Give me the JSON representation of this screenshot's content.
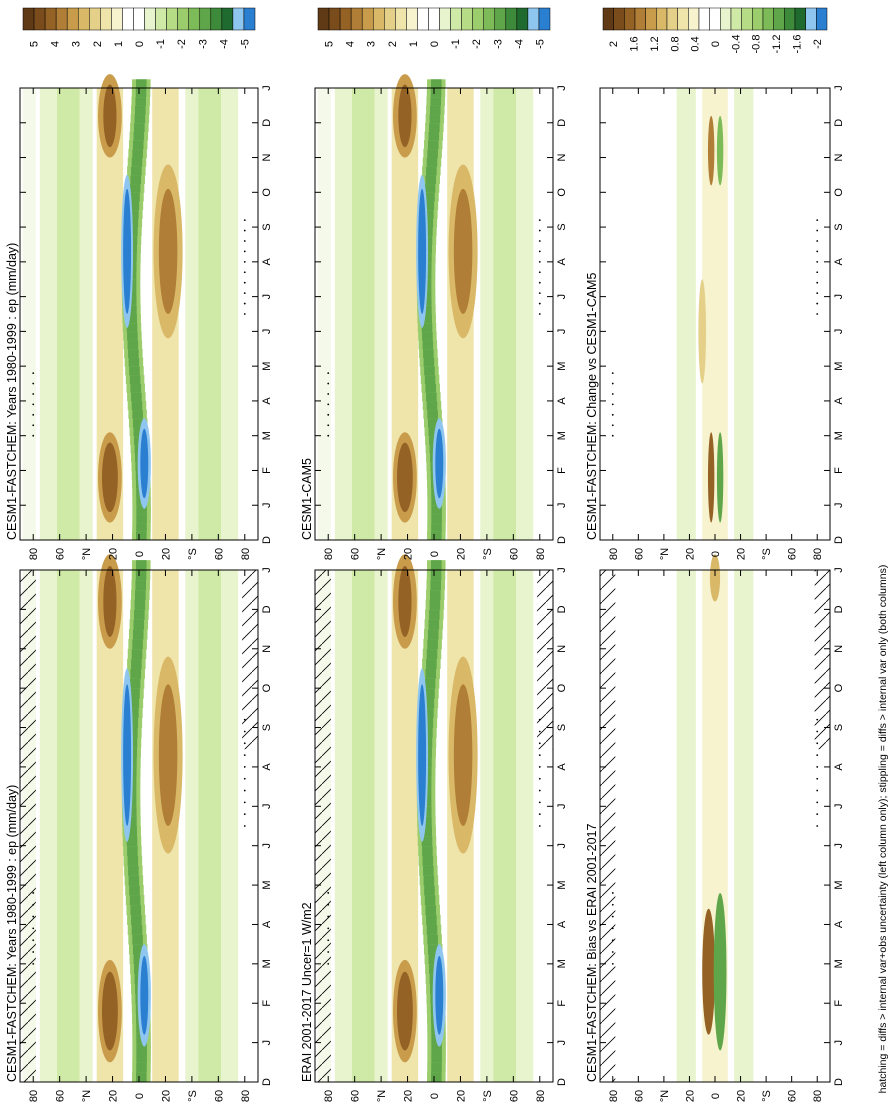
{
  "figure": {
    "footnote": "hatching = diffs > internal var+obs uncertainty (left column only); stippling = diffs > internal var only (both columns)",
    "colors": {
      "field": [
        "#2a7fd1",
        "#8fc6ef",
        "#1f6a2f",
        "#3e8a3b",
        "#5fa54a",
        "#7dbb58",
        "#9ccd6d",
        "#b7dc86",
        "#cfe9a6",
        "#e7f4cd",
        "#ffffff",
        "#ffffff",
        "#f7f3cf",
        "#efe4a9",
        "#e5d08a",
        "#d9b968",
        "#c99c4c",
        "#b07e36",
        "#956226",
        "#7a4c1c",
        "#5f3a15"
      ],
      "diff": [
        "#2a7fd1",
        "#8fc6ef",
        "#1f6a2f",
        "#3e8a3b",
        "#5fa54a",
        "#7dbb58",
        "#9ccd6d",
        "#b7dc86",
        "#cfe9a6",
        "#e7f4cd",
        "#ffffff",
        "#ffffff",
        "#f7f3cf",
        "#efe4a9",
        "#e5d08a",
        "#d9b968",
        "#c99c4c",
        "#b07e36",
        "#956226",
        "#7a4c1c",
        "#5f3a15"
      ]
    }
  },
  "panels": [
    {
      "id": "left-top",
      "title": "CESM1-FASTCHEM: Years 1980-1999 : ep (mm/day)",
      "month_ticks": [
        "D",
        "J",
        "F",
        "M",
        "A",
        "M",
        "J",
        "J",
        "A",
        "S",
        "O",
        "N",
        "D",
        "J"
      ],
      "lat_ticks": [
        "80",
        "60",
        "°N",
        "20",
        "0",
        "20",
        "°S",
        "60",
        "80"
      ],
      "colorbar_labels": [
        "5",
        "4",
        "3",
        "2",
        "1",
        "0",
        "-1",
        "-2",
        "-3",
        "-4",
        "-5"
      ],
      "palette": "field",
      "hatch": true
    },
    {
      "id": "right-top",
      "title": "CESM1-FASTCHEM: Years 1980-1999 : ep (mm/day)",
      "month_ticks": [
        "D",
        "J",
        "F",
        "M",
        "A",
        "M",
        "J",
        "J",
        "A",
        "S",
        "O",
        "N",
        "D",
        "J"
      ],
      "lat_ticks": [
        "80",
        "60",
        "°N",
        "20",
        "0",
        "20",
        "°S",
        "60",
        "80"
      ],
      "colorbar_labels": [
        "5",
        "4",
        "3",
        "2",
        "1",
        "0",
        "-1",
        "-2",
        "-3",
        "-4",
        "-5"
      ],
      "palette": "field",
      "hatch": false
    },
    {
      "id": "left-mid",
      "title": "ERAI 2001-2017 Uncer=1 W/m2",
      "month_ticks": [
        "D",
        "J",
        "F",
        "M",
        "A",
        "M",
        "J",
        "J",
        "A",
        "S",
        "O",
        "N",
        "D",
        "J"
      ],
      "lat_ticks": [
        "80",
        "60",
        "°N",
        "20",
        "0",
        "20",
        "°S",
        "60",
        "80"
      ],
      "colorbar_labels": [
        "5",
        "4",
        "3",
        "2",
        "1",
        "0",
        "-1",
        "-2",
        "-3",
        "-4",
        "-5"
      ],
      "palette": "field",
      "hatch": true
    },
    {
      "id": "right-mid",
      "title": "CESM1-CAM5",
      "month_ticks": [
        "D",
        "J",
        "F",
        "M",
        "A",
        "M",
        "J",
        "J",
        "A",
        "S",
        "O",
        "N",
        "D",
        "J"
      ],
      "lat_ticks": [
        "80",
        "60",
        "°N",
        "20",
        "0",
        "20",
        "°S",
        "60",
        "80"
      ],
      "colorbar_labels": [
        "5",
        "4",
        "3",
        "2",
        "1",
        "0",
        "-1",
        "-2",
        "-3",
        "-4",
        "-5"
      ],
      "palette": "field",
      "hatch": false
    },
    {
      "id": "left-bot",
      "title": "CESM1-FASTCHEM: Bias vs ERAI 2001-2017",
      "month_ticks": [
        "D",
        "J",
        "F",
        "M",
        "A",
        "M",
        "J",
        "J",
        "A",
        "S",
        "O",
        "N",
        "D",
        "J"
      ],
      "lat_ticks": [
        "80",
        "60",
        "°N",
        "20",
        "0",
        "20",
        "°S",
        "60",
        "80"
      ],
      "colorbar_labels": [
        "2",
        "1.6",
        "1.2",
        "0.8",
        "0.4",
        "0",
        "-0.4",
        "-0.8",
        "-1.2",
        "-1.6",
        "-2"
      ],
      "palette": "diff",
      "hatch": true
    },
    {
      "id": "right-bot",
      "title": "CESM1-FASTCHEM: Change vs CESM1-CAM5",
      "month_ticks": [
        "D",
        "J",
        "F",
        "M",
        "A",
        "M",
        "J",
        "J",
        "A",
        "S",
        "O",
        "N",
        "D",
        "J"
      ],
      "lat_ticks": [
        "80",
        "60",
        "°N",
        "20",
        "0",
        "20",
        "°S",
        "60",
        "80"
      ],
      "colorbar_labels": [
        "2",
        "1.6",
        "1.2",
        "0.8",
        "0.4",
        "0",
        "-0.4",
        "-0.8",
        "-1.2",
        "-1.6",
        "-2"
      ],
      "palette": "diff",
      "hatch": false
    }
  ],
  "chart_data": [
    {
      "type": "heatmap",
      "title": "CESM1-FASTCHEM: Years 1980-1999 : ep (mm/day)",
      "x": [
        "D",
        "J",
        "F",
        "M",
        "A",
        "M",
        "J",
        "J",
        "A",
        "S",
        "O",
        "N",
        "D",
        "J"
      ],
      "y": [
        "80",
        "60",
        "°N",
        "20",
        "0",
        "20",
        "°S",
        "60",
        "80"
      ],
      "colorbar": [
        5,
        4,
        3,
        2,
        1,
        0,
        -1,
        -2,
        -3,
        -4,
        -5
      ]
    },
    {
      "type": "heatmap",
      "title": "CESM1-FASTCHEM: Years 1980-1999 : ep (mm/day)",
      "x": [
        "D",
        "J",
        "F",
        "M",
        "A",
        "M",
        "J",
        "J",
        "A",
        "S",
        "O",
        "N",
        "D",
        "J"
      ],
      "y": [
        "80",
        "60",
        "°N",
        "20",
        "0",
        "20",
        "°S",
        "60",
        "80"
      ],
      "colorbar": [
        5,
        4,
        3,
        2,
        1,
        0,
        -1,
        -2,
        -3,
        -4,
        -5
      ]
    },
    {
      "type": "heatmap",
      "title": "ERAI 2001-2017 Uncer=1 W/m2",
      "x": [
        "D",
        "J",
        "F",
        "M",
        "A",
        "M",
        "J",
        "J",
        "A",
        "S",
        "O",
        "N",
        "D",
        "J"
      ],
      "y": [
        "80",
        "60",
        "°N",
        "20",
        "0",
        "20",
        "°S",
        "60",
        "80"
      ],
      "colorbar": [
        5,
        4,
        3,
        2,
        1,
        0,
        -1,
        -2,
        -3,
        -4,
        -5
      ]
    },
    {
      "type": "heatmap",
      "title": "CESM1-CAM5",
      "x": [
        "D",
        "J",
        "F",
        "M",
        "A",
        "M",
        "J",
        "J",
        "A",
        "S",
        "O",
        "N",
        "D",
        "J"
      ],
      "y": [
        "80",
        "60",
        "°N",
        "20",
        "0",
        "20",
        "°S",
        "60",
        "80"
      ],
      "colorbar": [
        5,
        4,
        3,
        2,
        1,
        0,
        -1,
        -2,
        -3,
        -4,
        -5
      ]
    },
    {
      "type": "heatmap",
      "title": "CESM1-FASTCHEM: Bias vs ERAI 2001-2017",
      "x": [
        "D",
        "J",
        "F",
        "M",
        "A",
        "M",
        "J",
        "J",
        "A",
        "S",
        "O",
        "N",
        "D",
        "J"
      ],
      "y": [
        "80",
        "60",
        "°N",
        "20",
        "0",
        "20",
        "°S",
        "60",
        "80"
      ],
      "colorbar": [
        2,
        1.6,
        1.2,
        0.8,
        0.4,
        0,
        -0.4,
        -0.8,
        -1.2,
        -1.6,
        -2
      ]
    },
    {
      "type": "heatmap",
      "title": "CESM1-FASTCHEM: Change vs CESM1-CAM5",
      "x": [
        "D",
        "J",
        "F",
        "M",
        "A",
        "M",
        "J",
        "J",
        "A",
        "S",
        "O",
        "N",
        "D",
        "J"
      ],
      "y": [
        "80",
        "60",
        "°N",
        "20",
        "0",
        "20",
        "°S",
        "60",
        "80"
      ],
      "colorbar": [
        2,
        1.6,
        1.2,
        0.8,
        0.4,
        0,
        -0.4,
        -0.8,
        -1.2,
        -1.6,
        -2
      ]
    }
  ]
}
